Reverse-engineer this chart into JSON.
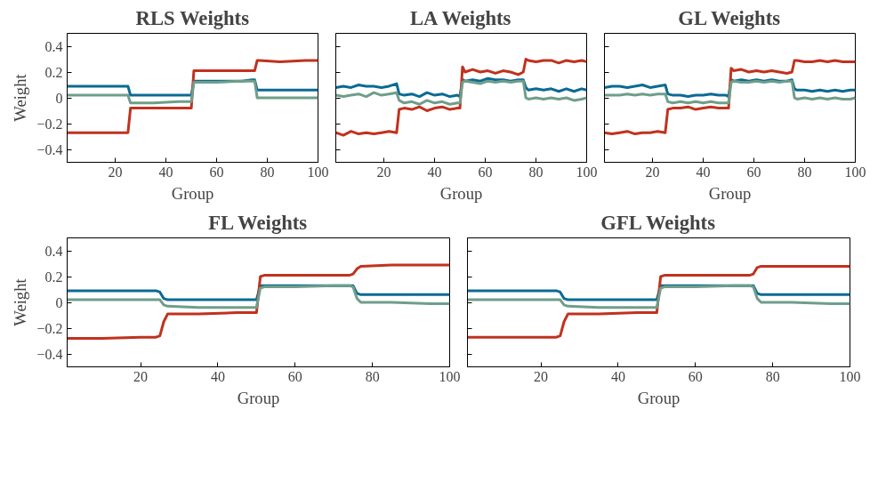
{
  "chart_data": [
    {
      "type": "line",
      "title": "RLS Weights",
      "xlabel": "Group",
      "ylabel": "Weight",
      "xlim": [
        1,
        100
      ],
      "ylim": [
        -0.5,
        0.5
      ],
      "xticks": [
        20,
        40,
        60,
        80,
        100
      ],
      "yticks": [
        -0.4,
        -0.2,
        0,
        0.2,
        0.4
      ],
      "x": [
        1,
        10,
        20,
        24,
        25,
        26,
        27,
        35,
        45,
        49,
        50,
        51,
        52,
        60,
        70,
        74,
        75,
        76,
        77,
        85,
        95,
        100
      ],
      "series": [
        {
          "color": "#0b6a93",
          "values": [
            0.09,
            0.09,
            0.09,
            0.09,
            0.09,
            0.02,
            0.02,
            0.02,
            0.02,
            0.02,
            0.02,
            0.13,
            0.13,
            0.13,
            0.13,
            0.14,
            0.14,
            0.06,
            0.06,
            0.06,
            0.06,
            0.06
          ]
        },
        {
          "color": "#c0321e",
          "values": [
            -0.27,
            -0.27,
            -0.27,
            -0.27,
            -0.27,
            -0.08,
            -0.08,
            -0.08,
            -0.08,
            -0.08,
            -0.08,
            0.21,
            0.21,
            0.21,
            0.21,
            0.21,
            0.21,
            0.29,
            0.29,
            0.28,
            0.29,
            0.29
          ]
        },
        {
          "color": "#6e9e8a",
          "values": [
            0.02,
            0.02,
            0.02,
            0.02,
            0.02,
            -0.04,
            -0.04,
            -0.04,
            -0.03,
            -0.03,
            -0.03,
            0.12,
            0.12,
            0.12,
            0.13,
            0.13,
            0.13,
            0.0,
            0.0,
            0.0,
            0.0,
            0.0
          ]
        }
      ]
    },
    {
      "type": "line",
      "title": "LA Weights",
      "xlabel": "Group",
      "xlim": [
        1,
        100
      ],
      "ylim": [
        -0.5,
        0.5
      ],
      "xticks": [
        20,
        40,
        60,
        80,
        100
      ],
      "yticks": [
        -0.4,
        -0.2,
        0,
        0.2,
        0.4
      ],
      "tick_labels": "x",
      "x": [
        1,
        4,
        7,
        10,
        13,
        16,
        19,
        22,
        25,
        26,
        28,
        31,
        34,
        37,
        40,
        43,
        46,
        49,
        50,
        51,
        52,
        55,
        58,
        61,
        64,
        67,
        70,
        73,
        75,
        76,
        77,
        80,
        83,
        86,
        89,
        92,
        95,
        98,
        100
      ],
      "series": [
        {
          "color": "#0b6a93",
          "values": [
            0.08,
            0.09,
            0.08,
            0.1,
            0.09,
            0.09,
            0.08,
            0.09,
            0.11,
            0.03,
            0.02,
            0.03,
            0.01,
            0.04,
            0.02,
            0.03,
            0.01,
            0.02,
            0.01,
            0.14,
            0.13,
            0.14,
            0.13,
            0.15,
            0.14,
            0.14,
            0.13,
            0.14,
            0.14,
            0.08,
            0.06,
            0.07,
            0.06,
            0.07,
            0.05,
            0.07,
            0.05,
            0.07,
            0.06
          ]
        },
        {
          "color": "#c0321e",
          "values": [
            -0.27,
            -0.29,
            -0.26,
            -0.28,
            -0.27,
            -0.28,
            -0.27,
            -0.26,
            -0.27,
            -0.09,
            -0.08,
            -0.09,
            -0.07,
            -0.1,
            -0.08,
            -0.07,
            -0.09,
            -0.08,
            -0.08,
            0.24,
            0.2,
            0.22,
            0.2,
            0.21,
            0.19,
            0.21,
            0.2,
            0.18,
            0.2,
            0.3,
            0.29,
            0.28,
            0.29,
            0.29,
            0.27,
            0.29,
            0.28,
            0.29,
            0.28
          ]
        },
        {
          "color": "#6e9e8a",
          "values": [
            0.02,
            0.01,
            0.02,
            0.03,
            0.01,
            0.04,
            0.02,
            0.03,
            0.04,
            -0.02,
            -0.04,
            -0.03,
            -0.05,
            -0.02,
            -0.04,
            -0.03,
            -0.05,
            -0.04,
            -0.04,
            0.12,
            0.13,
            0.12,
            0.11,
            0.13,
            0.12,
            0.13,
            0.12,
            0.13,
            0.13,
            0.0,
            -0.01,
            0.0,
            -0.01,
            0.0,
            -0.01,
            0.0,
            -0.02,
            -0.01,
            0.0
          ]
        }
      ]
    },
    {
      "type": "line",
      "title": "GL Weights",
      "xlabel": "Group",
      "xlim": [
        1,
        100
      ],
      "ylim": [
        -0.5,
        0.5
      ],
      "xticks": [
        20,
        40,
        60,
        80,
        100
      ],
      "yticks": [
        -0.4,
        -0.2,
        0,
        0.2,
        0.4
      ],
      "tick_labels": "x",
      "x": [
        1,
        4,
        7,
        10,
        13,
        16,
        19,
        22,
        25,
        26,
        28,
        31,
        34,
        37,
        40,
        43,
        46,
        49,
        50,
        51,
        52,
        55,
        58,
        61,
        64,
        67,
        70,
        73,
        75,
        76,
        77,
        80,
        83,
        86,
        89,
        92,
        95,
        98,
        100
      ],
      "series": [
        {
          "color": "#0b6a93",
          "values": [
            0.08,
            0.09,
            0.09,
            0.08,
            0.09,
            0.1,
            0.08,
            0.09,
            0.1,
            0.03,
            0.02,
            0.02,
            0.01,
            0.02,
            0.02,
            0.03,
            0.02,
            0.02,
            0.01,
            0.14,
            0.13,
            0.14,
            0.13,
            0.14,
            0.13,
            0.14,
            0.13,
            0.13,
            0.14,
            0.07,
            0.06,
            0.06,
            0.05,
            0.06,
            0.05,
            0.06,
            0.05,
            0.06,
            0.06
          ]
        },
        {
          "color": "#c0321e",
          "values": [
            -0.27,
            -0.28,
            -0.27,
            -0.26,
            -0.28,
            -0.27,
            -0.27,
            -0.26,
            -0.27,
            -0.09,
            -0.08,
            -0.08,
            -0.07,
            -0.09,
            -0.08,
            -0.07,
            -0.08,
            -0.08,
            -0.08,
            0.23,
            0.21,
            0.22,
            0.2,
            0.21,
            0.2,
            0.21,
            0.2,
            0.19,
            0.2,
            0.29,
            0.29,
            0.28,
            0.28,
            0.29,
            0.28,
            0.29,
            0.28,
            0.28,
            0.28
          ]
        },
        {
          "color": "#6e9e8a",
          "values": [
            0.02,
            0.02,
            0.02,
            0.03,
            0.02,
            0.03,
            0.02,
            0.03,
            0.03,
            -0.03,
            -0.04,
            -0.03,
            -0.04,
            -0.03,
            -0.04,
            -0.03,
            -0.04,
            -0.04,
            -0.04,
            0.12,
            0.13,
            0.12,
            0.12,
            0.13,
            0.12,
            0.13,
            0.12,
            0.13,
            0.13,
            0.0,
            -0.01,
            0.0,
            -0.01,
            0.0,
            -0.01,
            0.0,
            -0.01,
            -0.01,
            0.0
          ]
        }
      ]
    },
    {
      "type": "line",
      "title": "FL Weights",
      "xlabel": "Group",
      "ylabel": "Weight",
      "xlim": [
        1,
        100
      ],
      "ylim": [
        -0.5,
        0.5
      ],
      "xticks": [
        20,
        40,
        60,
        80,
        100
      ],
      "yticks": [
        -0.4,
        -0.2,
        0,
        0.2,
        0.4
      ],
      "x": [
        1,
        10,
        20,
        24,
        25,
        26,
        27,
        35,
        45,
        49,
        50,
        51,
        52,
        60,
        70,
        74,
        75,
        76,
        77,
        85,
        95,
        100
      ],
      "series": [
        {
          "color": "#0b6a93",
          "values": [
            0.09,
            0.09,
            0.09,
            0.09,
            0.08,
            0.03,
            0.02,
            0.02,
            0.02,
            0.02,
            0.02,
            0.13,
            0.13,
            0.13,
            0.13,
            0.13,
            0.13,
            0.07,
            0.06,
            0.06,
            0.06,
            0.06
          ]
        },
        {
          "color": "#c0321e",
          "values": [
            -0.28,
            -0.28,
            -0.27,
            -0.27,
            -0.26,
            -0.15,
            -0.09,
            -0.09,
            -0.08,
            -0.08,
            -0.08,
            0.2,
            0.21,
            0.21,
            0.21,
            0.21,
            0.22,
            0.26,
            0.28,
            0.29,
            0.29,
            0.29
          ]
        },
        {
          "color": "#6e9e8a",
          "values": [
            0.02,
            0.02,
            0.02,
            0.02,
            0.02,
            -0.02,
            -0.03,
            -0.04,
            -0.04,
            -0.04,
            -0.04,
            0.11,
            0.12,
            0.12,
            0.13,
            0.13,
            0.12,
            0.03,
            0.0,
            0.0,
            -0.01,
            -0.01
          ]
        }
      ]
    },
    {
      "type": "line",
      "title": "GFL Weights",
      "xlabel": "Group",
      "xlim": [
        1,
        100
      ],
      "ylim": [
        -0.5,
        0.5
      ],
      "xticks": [
        20,
        40,
        60,
        80,
        100
      ],
      "yticks": [
        -0.4,
        -0.2,
        0,
        0.2,
        0.4
      ],
      "tick_labels": "x",
      "x": [
        1,
        10,
        20,
        24,
        25,
        26,
        27,
        35,
        45,
        49,
        50,
        51,
        52,
        60,
        70,
        74,
        75,
        76,
        77,
        85,
        95,
        100
      ],
      "series": [
        {
          "color": "#0b6a93",
          "values": [
            0.09,
            0.09,
            0.09,
            0.09,
            0.08,
            0.03,
            0.02,
            0.02,
            0.02,
            0.02,
            0.02,
            0.13,
            0.13,
            0.13,
            0.13,
            0.13,
            0.13,
            0.07,
            0.06,
            0.06,
            0.06,
            0.06
          ]
        },
        {
          "color": "#c0321e",
          "values": [
            -0.27,
            -0.27,
            -0.27,
            -0.27,
            -0.26,
            -0.15,
            -0.09,
            -0.09,
            -0.08,
            -0.08,
            -0.08,
            0.2,
            0.21,
            0.21,
            0.21,
            0.21,
            0.22,
            0.27,
            0.28,
            0.28,
            0.28,
            0.28
          ]
        },
        {
          "color": "#6e9e8a",
          "values": [
            0.02,
            0.02,
            0.02,
            0.02,
            0.02,
            -0.02,
            -0.03,
            -0.04,
            -0.04,
            -0.04,
            -0.04,
            0.11,
            0.12,
            0.12,
            0.13,
            0.13,
            0.12,
            0.03,
            0.0,
            0.0,
            -0.01,
            -0.01
          ]
        }
      ]
    }
  ]
}
